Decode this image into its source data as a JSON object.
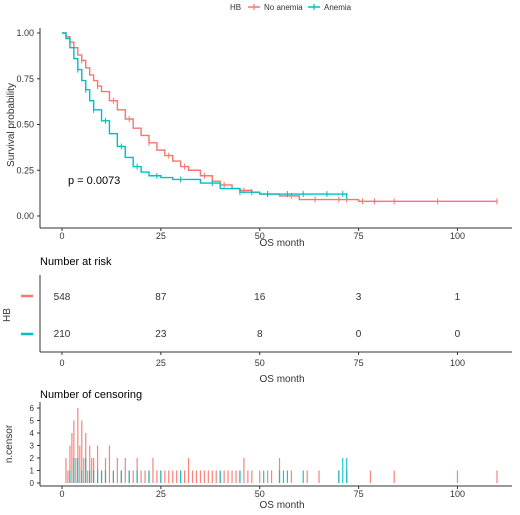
{
  "colors": {
    "no_anemia": "#F8766D",
    "anemia": "#00BFC4",
    "axis": "#333333"
  },
  "legend": {
    "title": "HB",
    "items": [
      "No anemia",
      "Anemia"
    ],
    "placement": "top"
  },
  "chart_data": [
    {
      "type": "line",
      "subtype": "kaplan-meier",
      "xlabel": "OS month",
      "ylabel": "Survival probability",
      "xlim": [
        0,
        110
      ],
      "ylim": [
        0,
        1
      ],
      "xticks": [
        "0",
        "25",
        "50",
        "75",
        "100"
      ],
      "yticks": [
        "0.00",
        "0.25",
        "0.50",
        "0.75",
        "1.00"
      ],
      "annotation": "p = 0.0073",
      "series": [
        {
          "name": "No anemia",
          "x": [
            0,
            1,
            2,
            3,
            4,
            5,
            6,
            7,
            8,
            9,
            10,
            12,
            14,
            16,
            18,
            20,
            22,
            24,
            26,
            28,
            30,
            32,
            35,
            38,
            40,
            43,
            45,
            48,
            50,
            55,
            60,
            65,
            70,
            75,
            80,
            90,
            100,
            110
          ],
          "y": [
            1.0,
            0.98,
            0.95,
            0.92,
            0.88,
            0.85,
            0.81,
            0.77,
            0.74,
            0.71,
            0.68,
            0.63,
            0.58,
            0.53,
            0.48,
            0.44,
            0.4,
            0.36,
            0.33,
            0.3,
            0.27,
            0.25,
            0.22,
            0.19,
            0.17,
            0.15,
            0.14,
            0.13,
            0.12,
            0.11,
            0.09,
            0.09,
            0.09,
            0.08,
            0.08,
            0.08,
            0.08,
            0.08
          ],
          "censor_x": [
            5,
            9,
            13,
            17,
            22,
            27,
            31,
            36,
            41,
            46,
            52,
            58,
            64,
            70,
            72,
            76,
            79,
            84,
            95,
            110
          ]
        },
        {
          "name": "Anemia",
          "x": [
            0,
            1,
            2,
            3,
            4,
            5,
            6,
            7,
            8,
            10,
            12,
            14,
            16,
            18,
            20,
            22,
            25,
            28,
            30,
            35,
            40,
            45,
            50,
            55,
            60,
            65,
            70,
            72
          ],
          "y": [
            1.0,
            0.97,
            0.92,
            0.86,
            0.8,
            0.74,
            0.69,
            0.63,
            0.58,
            0.52,
            0.45,
            0.38,
            0.32,
            0.27,
            0.24,
            0.22,
            0.21,
            0.2,
            0.2,
            0.18,
            0.15,
            0.13,
            0.12,
            0.12,
            0.12,
            0.12,
            0.12,
            0.11
          ],
          "censor_x": [
            4,
            6,
            8,
            11,
            15,
            19,
            24,
            30,
            38,
            45,
            48,
            52,
            57,
            61,
            67,
            71,
            72
          ]
        }
      ]
    },
    {
      "type": "table",
      "title": "Number at risk",
      "xlabel": "OS month",
      "ylabel": "HB",
      "xlim": [
        0,
        110
      ],
      "xticks": [
        "0",
        "25",
        "50",
        "75",
        "100"
      ],
      "time_points": [
        0,
        25,
        50,
        75,
        100
      ],
      "rows": [
        {
          "name": "No anemia",
          "values": [
            "548",
            "87",
            "16",
            "3",
            "1"
          ]
        },
        {
          "name": "Anemia",
          "values": [
            "210",
            "23",
            "8",
            "0",
            "0"
          ]
        }
      ]
    },
    {
      "type": "bar",
      "title": "Number of censoring",
      "xlabel": "OS month",
      "ylabel": "n.censor",
      "xlim": [
        0,
        110
      ],
      "ylim": [
        0,
        6
      ],
      "xticks": [
        "0",
        "25",
        "50",
        "75",
        "100"
      ],
      "yticks": [
        "0",
        "1",
        "2",
        "3",
        "4",
        "5",
        "6"
      ],
      "series": [
        {
          "name": "No anemia",
          "x": [
            1,
            1.5,
            2,
            2.5,
            3,
            3.5,
            4,
            4.5,
            5,
            5.5,
            6,
            6.5,
            7,
            7.5,
            8,
            9,
            10,
            11,
            12,
            13,
            14,
            15,
            16,
            17,
            18,
            19,
            20,
            21,
            22,
            23,
            24,
            25,
            26,
            27,
            28,
            29,
            30,
            31,
            32,
            33,
            34,
            35,
            36,
            37,
            38,
            39,
            40,
            41,
            42,
            43,
            44,
            45,
            46,
            47,
            48,
            50,
            52,
            53,
            55,
            58,
            62,
            65,
            70,
            72,
            78,
            84,
            100,
            110
          ],
          "values": [
            2,
            1,
            3,
            4,
            5,
            2,
            6,
            3,
            5,
            2,
            4,
            1,
            3,
            2,
            2,
            3,
            1,
            2,
            3,
            1,
            2,
            1,
            2,
            1,
            1,
            2,
            1,
            1,
            1,
            2,
            1,
            1,
            1,
            1,
            1,
            1,
            1,
            1,
            2,
            1,
            1,
            1,
            1,
            1,
            1,
            1,
            1,
            1,
            1,
            1,
            1,
            1,
            2,
            1,
            1,
            1,
            1,
            1,
            2,
            1,
            1,
            1,
            1,
            1,
            1,
            1,
            1,
            1
          ]
        },
        {
          "name": "Anemia",
          "x": [
            2,
            3,
            4,
            5,
            6,
            7,
            8,
            9,
            10,
            11,
            13,
            15,
            17,
            19,
            22,
            25,
            30,
            40,
            45,
            51,
            55,
            56,
            57,
            61,
            70,
            71,
            72
          ],
          "values": [
            1,
            2,
            2,
            1,
            2,
            1,
            1,
            1,
            1,
            1,
            1,
            1,
            1,
            1,
            1,
            1,
            1,
            1,
            1,
            1,
            1,
            1,
            1,
            1,
            1,
            2,
            2
          ]
        }
      ]
    }
  ]
}
